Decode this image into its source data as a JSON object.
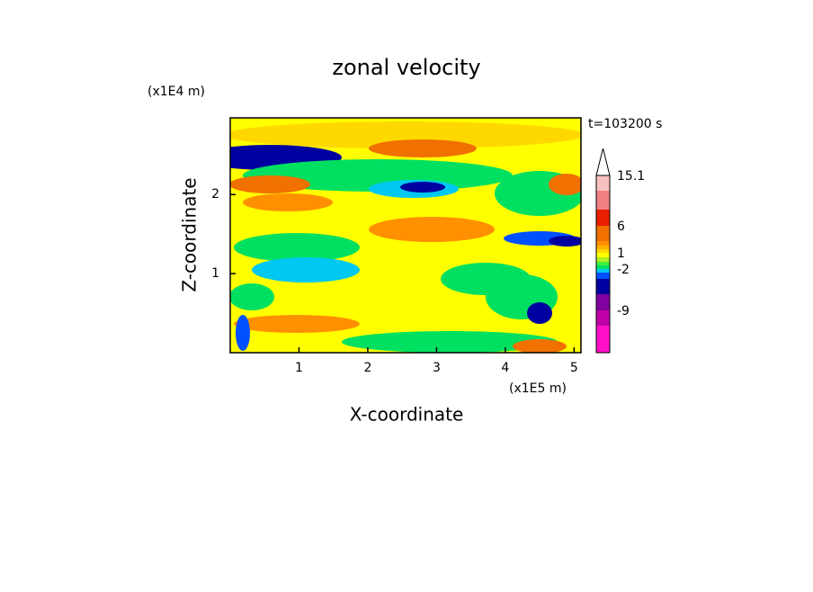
{
  "chart_data": {
    "type": "contour",
    "title": "zonal velocity",
    "y_unit": "(x1E4 m)",
    "x_unit": "(x1E5 m)",
    "time_label": "t=103200 s",
    "x_label": "X-coordinate",
    "y_label": "Z-coordinate",
    "xlim": [
      0,
      5.1
    ],
    "xticks": [
      1,
      2,
      3,
      4,
      5
    ],
    "ylim": [
      0,
      2.97
    ],
    "yticks": [
      1,
      2
    ],
    "colorbar": [
      {
        "color": "#ff10c8",
        "label": null
      },
      {
        "color": "#c000a8",
        "label": -9
      },
      {
        "color": "#8000a0",
        "label": null
      },
      {
        "color": "#0000a0",
        "label": null
      },
      {
        "color": "#0050ff",
        "label": null
      },
      {
        "color": "#00c8f0",
        "label": -2
      },
      {
        "color": "#00e060",
        "label": null
      },
      {
        "color": "#40f040",
        "label": null
      },
      {
        "color": "#b0f020",
        "label": null
      },
      {
        "color": "#ffff00",
        "label": 1
      },
      {
        "color": "#ffd800",
        "label": null
      },
      {
        "color": "#ffb000",
        "label": null
      },
      {
        "color": "#ff9000",
        "label": null
      },
      {
        "color": "#f07000",
        "label": 6
      },
      {
        "color": "#e82000",
        "label": null
      },
      {
        "color": "#f08080",
        "label": null
      },
      {
        "color": "#f8c0c0",
        "label": 15.1
      }
    ]
  }
}
